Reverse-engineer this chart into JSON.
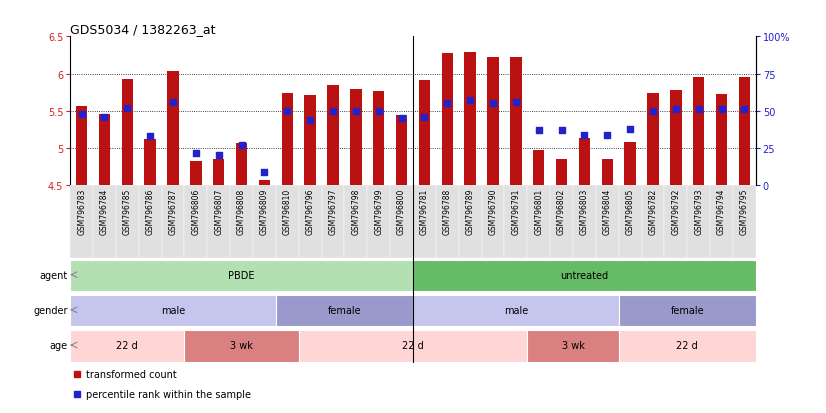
{
  "title": "GDS5034 / 1382263_at",
  "samples": [
    "GSM796783",
    "GSM796784",
    "GSM796785",
    "GSM796786",
    "GSM796787",
    "GSM796806",
    "GSM796807",
    "GSM796808",
    "GSM796809",
    "GSM796810",
    "GSM796796",
    "GSM796797",
    "GSM796798",
    "GSM796799",
    "GSM796800",
    "GSM796781",
    "GSM796788",
    "GSM796789",
    "GSM796790",
    "GSM796791",
    "GSM796801",
    "GSM796802",
    "GSM796803",
    "GSM796804",
    "GSM796805",
    "GSM796782",
    "GSM796792",
    "GSM796793",
    "GSM796794",
    "GSM796795"
  ],
  "bar_values": [
    5.57,
    5.46,
    5.93,
    5.12,
    6.04,
    4.82,
    4.85,
    5.07,
    4.57,
    5.74,
    5.71,
    5.84,
    5.79,
    5.77,
    5.45,
    5.91,
    6.28,
    6.29,
    6.22,
    6.22,
    4.97,
    4.85,
    5.13,
    4.85,
    5.08,
    5.74,
    5.78,
    5.95,
    5.72,
    5.95
  ],
  "percentile_pct": [
    48,
    46,
    52,
    33,
    56,
    22,
    20,
    27,
    9,
    50,
    44,
    50,
    50,
    50,
    45,
    46,
    55,
    57,
    55,
    56,
    37,
    37,
    34,
    34,
    38,
    50,
    51,
    51,
    51,
    51
  ],
  "ymin": 4.5,
  "ymax": 6.5,
  "bar_color": "#bb1111",
  "dot_color": "#2222cc",
  "pbde_sep": 14.5,
  "agent_groups": [
    {
      "label": "PBDE",
      "start": 0,
      "end": 14,
      "color": "#b3e0b3"
    },
    {
      "label": "untreated",
      "start": 15,
      "end": 29,
      "color": "#66bb66"
    }
  ],
  "gender_groups": [
    {
      "label": "male",
      "start": 0,
      "end": 8,
      "color": "#c5c5ee"
    },
    {
      "label": "female",
      "start": 9,
      "end": 14,
      "color": "#9999cc"
    },
    {
      "label": "male",
      "start": 15,
      "end": 23,
      "color": "#c5c5ee"
    },
    {
      "label": "female",
      "start": 24,
      "end": 29,
      "color": "#9999cc"
    }
  ],
  "age_groups": [
    {
      "label": "22 d",
      "start": 0,
      "end": 4,
      "color": "#ffd5d5"
    },
    {
      "label": "3 wk",
      "start": 5,
      "end": 9,
      "color": "#d98080"
    },
    {
      "label": "22 d",
      "start": 10,
      "end": 19,
      "color": "#ffd5d5"
    },
    {
      "label": "3 wk",
      "start": 20,
      "end": 23,
      "color": "#d98080"
    },
    {
      "label": "22 d",
      "start": 24,
      "end": 29,
      "color": "#ffd5d5"
    }
  ],
  "legend_items": [
    {
      "label": "transformed count",
      "color": "#bb1111"
    },
    {
      "label": "percentile rank within the sample",
      "color": "#2222cc"
    }
  ],
  "row_labels": [
    "agent",
    "gender",
    "age"
  ]
}
